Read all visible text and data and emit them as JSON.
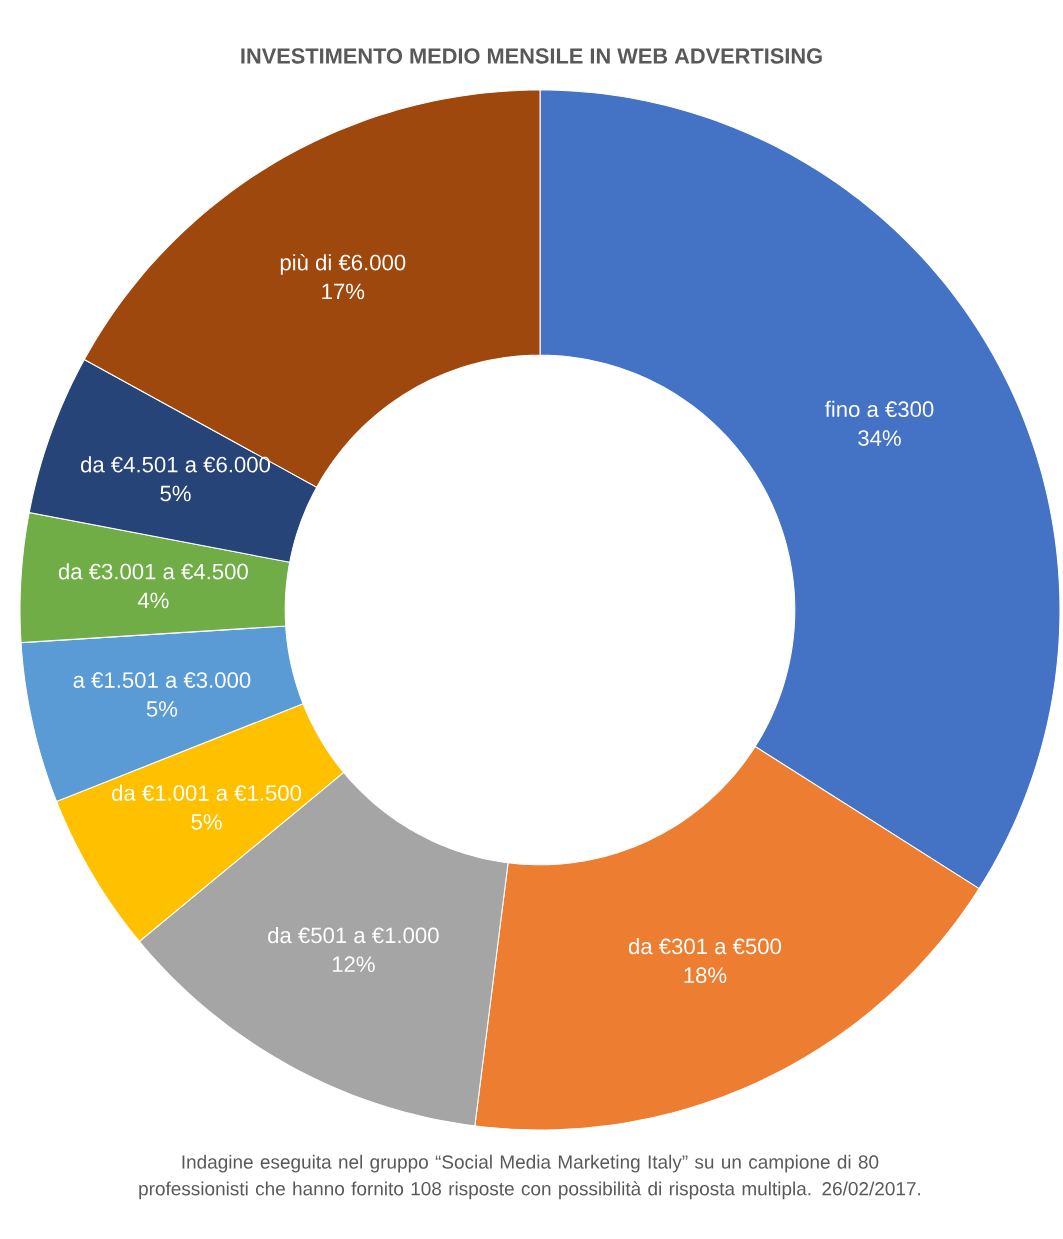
{
  "chart_data": {
    "type": "donut",
    "title": "INVESTIMENTO MEDIO MENSILE IN WEB ADVERTISING",
    "categories": [
      "fino a €300",
      "da €301 a €500",
      "da €501 a €1.000",
      "da €1.001 a €1.500",
      "a €1.501 a €3.000",
      "da €3.001 a €4.500",
      "da €4.501 a €6.000",
      "più di €6.000"
    ],
    "values": [
      34,
      18,
      12,
      5,
      5,
      4,
      5,
      17
    ],
    "colors": [
      "#4472c4",
      "#ed7d31",
      "#a5a5a5",
      "#ffc000",
      "#5b9bd5",
      "#70ad47",
      "#264478",
      "#9e480e"
    ],
    "value_labels": [
      "34%",
      "18%",
      "12%",
      "5%",
      "5%",
      "4%",
      "5%",
      "17%"
    ],
    "annotations": [
      "Indagine eseguita nel gruppo “Social Media Marketing Italy” su un campione di 80 professionisti che hanno fornito 108 risposte con possibilità di risposta multipla. 26/02/2017."
    ]
  }
}
